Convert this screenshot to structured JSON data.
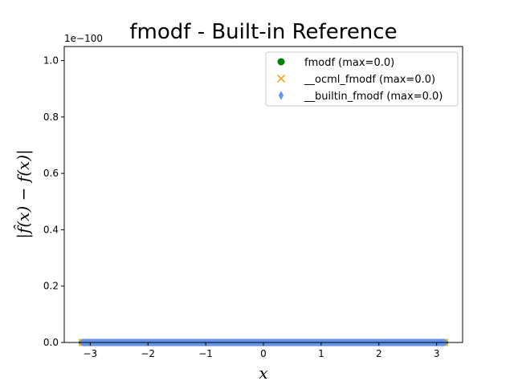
{
  "chart_data": {
    "type": "scatter",
    "title": "fmodf - Built-in Reference",
    "xlabel": "x",
    "ylabel": "|f̂(x) − f(x)|",
    "y_offset_label": "1e−100",
    "xlim": [
      -3.45,
      3.45
    ],
    "ylim": [
      0,
      1.05
    ],
    "x_ticks": [
      -3,
      -2,
      -1,
      0,
      1,
      2,
      3
    ],
    "x_tick_labels": [
      "−3",
      "−2",
      "−1",
      "0",
      "1",
      "2",
      "3"
    ],
    "y_ticks": [
      0.0,
      0.2,
      0.4,
      0.6,
      0.8,
      1.0
    ],
    "y_tick_labels": [
      "0.0",
      "0.2",
      "0.4",
      "0.6",
      "0.8",
      "1.0"
    ],
    "x_range": [
      -3.14159,
      3.14159
    ],
    "n_points": 400,
    "series": [
      {
        "name": "fmodf",
        "label": "fmodf (max=0.0)",
        "marker": "circle",
        "color": "#008000",
        "value": 0.0
      },
      {
        "name": "__ocml_fmodf",
        "label": "__ocml_fmodf (max=0.0)",
        "marker": "x",
        "color": "#f5a623",
        "value": 0.0
      },
      {
        "name": "__builtin_fmodf",
        "label": "__builtin_fmodf (max=0.0)",
        "marker": "diamond",
        "color": "#6495ed",
        "value": 0.0
      }
    ],
    "legend_position": "top-right",
    "grid": false
  }
}
